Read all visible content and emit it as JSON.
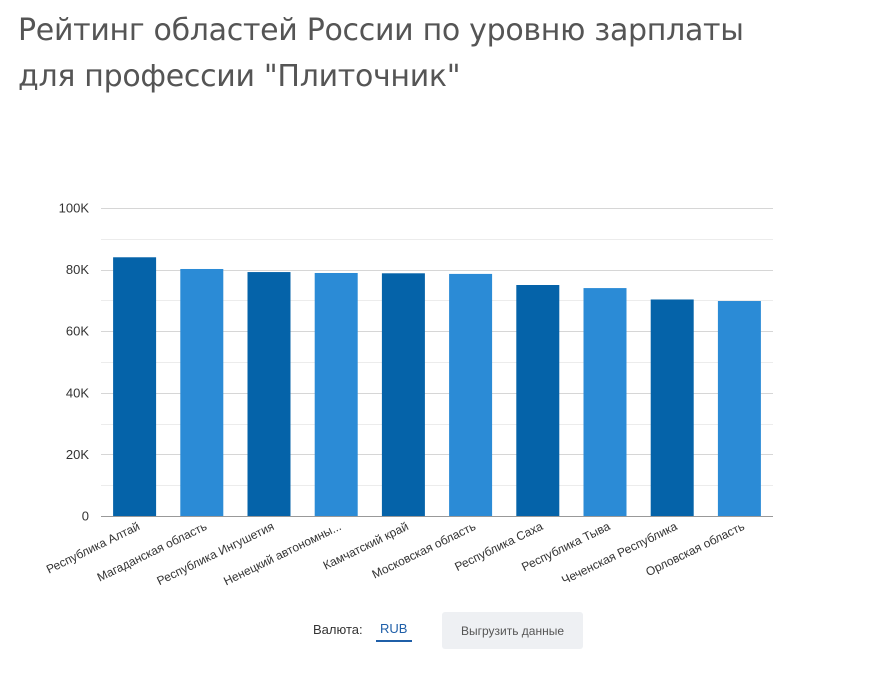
{
  "page": {
    "title": "Рейтинг областей России по уровню зарплаты для профессии \"Плиточник\""
  },
  "controls": {
    "currency_label": "Валюта:",
    "currency_value": "RUB",
    "export_label": "Выгрузить данные"
  },
  "colors": {
    "dark_bar": "#0563a9",
    "light_bar": "#2b8bd6",
    "gridline": "#e0e0e0",
    "axis": "#999999"
  },
  "chart_data": {
    "type": "bar",
    "title": "Рейтинг областей России по уровню зарплаты для профессии \"Плиточник\"",
    "xlabel": "",
    "ylabel": "",
    "ylim": [
      0,
      100000
    ],
    "yticks": [
      0,
      20000,
      40000,
      60000,
      80000,
      100000
    ],
    "ytick_labels": [
      "0",
      "20K",
      "40K",
      "60K",
      "80K",
      "100K"
    ],
    "grid": true,
    "legend": "none",
    "categories": [
      "Республика Алтай",
      "Магаданская область",
      "Республика Ингушетия",
      "Ненецкий автономны...",
      "Камчатский край",
      "Московская область",
      "Республика Саха",
      "Республика Тыва",
      "Чеченская Республика",
      "Орловская область"
    ],
    "values": [
      84000,
      80200,
      79200,
      78900,
      78800,
      78600,
      75000,
      74000,
      70300,
      69800
    ],
    "bar_colors": [
      "#0563a9",
      "#2b8bd6",
      "#0563a9",
      "#2b8bd6",
      "#0563a9",
      "#2b8bd6",
      "#0563a9",
      "#2b8bd6",
      "#0563a9",
      "#2b8bd6"
    ]
  }
}
